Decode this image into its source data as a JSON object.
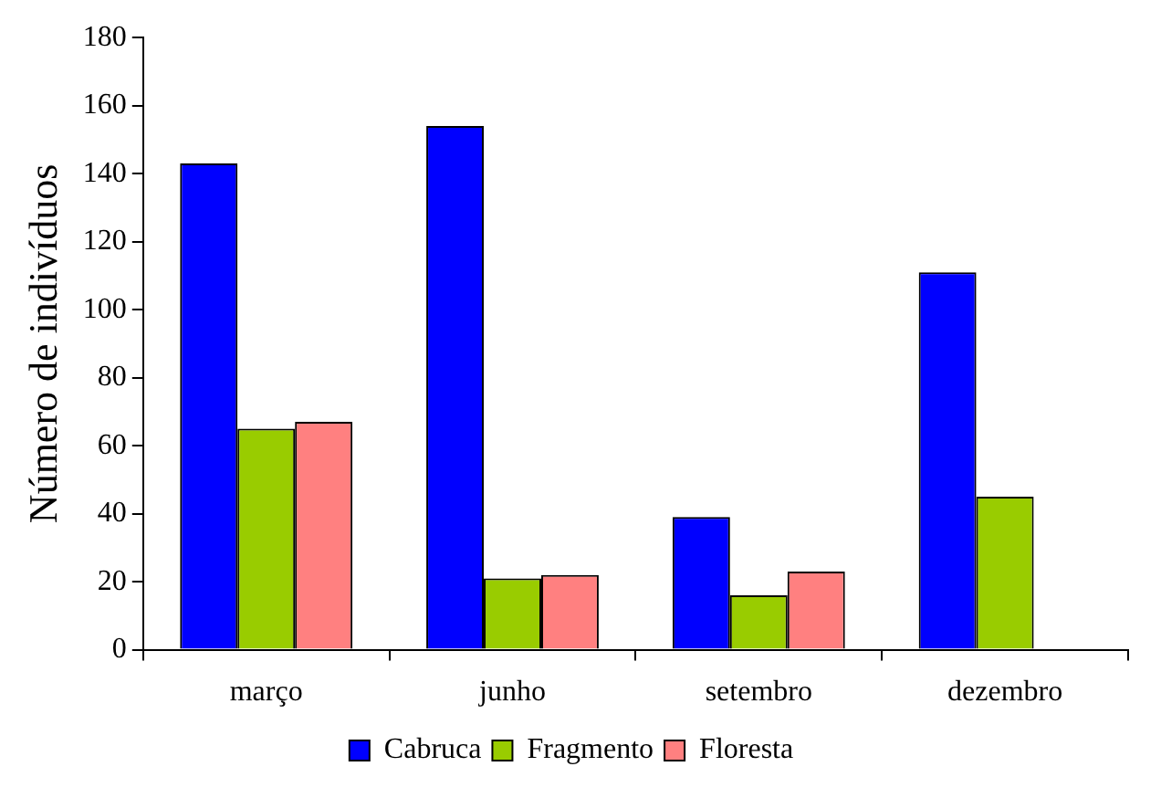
{
  "chart_data": {
    "type": "bar",
    "ylabel": "Número de indivíduos",
    "categories": [
      "março",
      "junho",
      "setembro",
      "dezembro"
    ],
    "series": [
      {
        "name": "Cabruca",
        "color": "#0000ff",
        "values": [
          143,
          154,
          39,
          111
        ]
      },
      {
        "name": "Fragmento",
        "color": "#99cc00",
        "values": [
          65,
          21,
          16,
          45
        ]
      },
      {
        "name": "Floresta",
        "color": "#ff8080",
        "values": [
          67,
          22,
          23,
          null
        ]
      }
    ],
    "ylim": [
      0,
      180
    ],
    "yticks": [
      0,
      20,
      40,
      60,
      80,
      100,
      120,
      140,
      160,
      180
    ],
    "grid": false,
    "legend": "bottom"
  }
}
